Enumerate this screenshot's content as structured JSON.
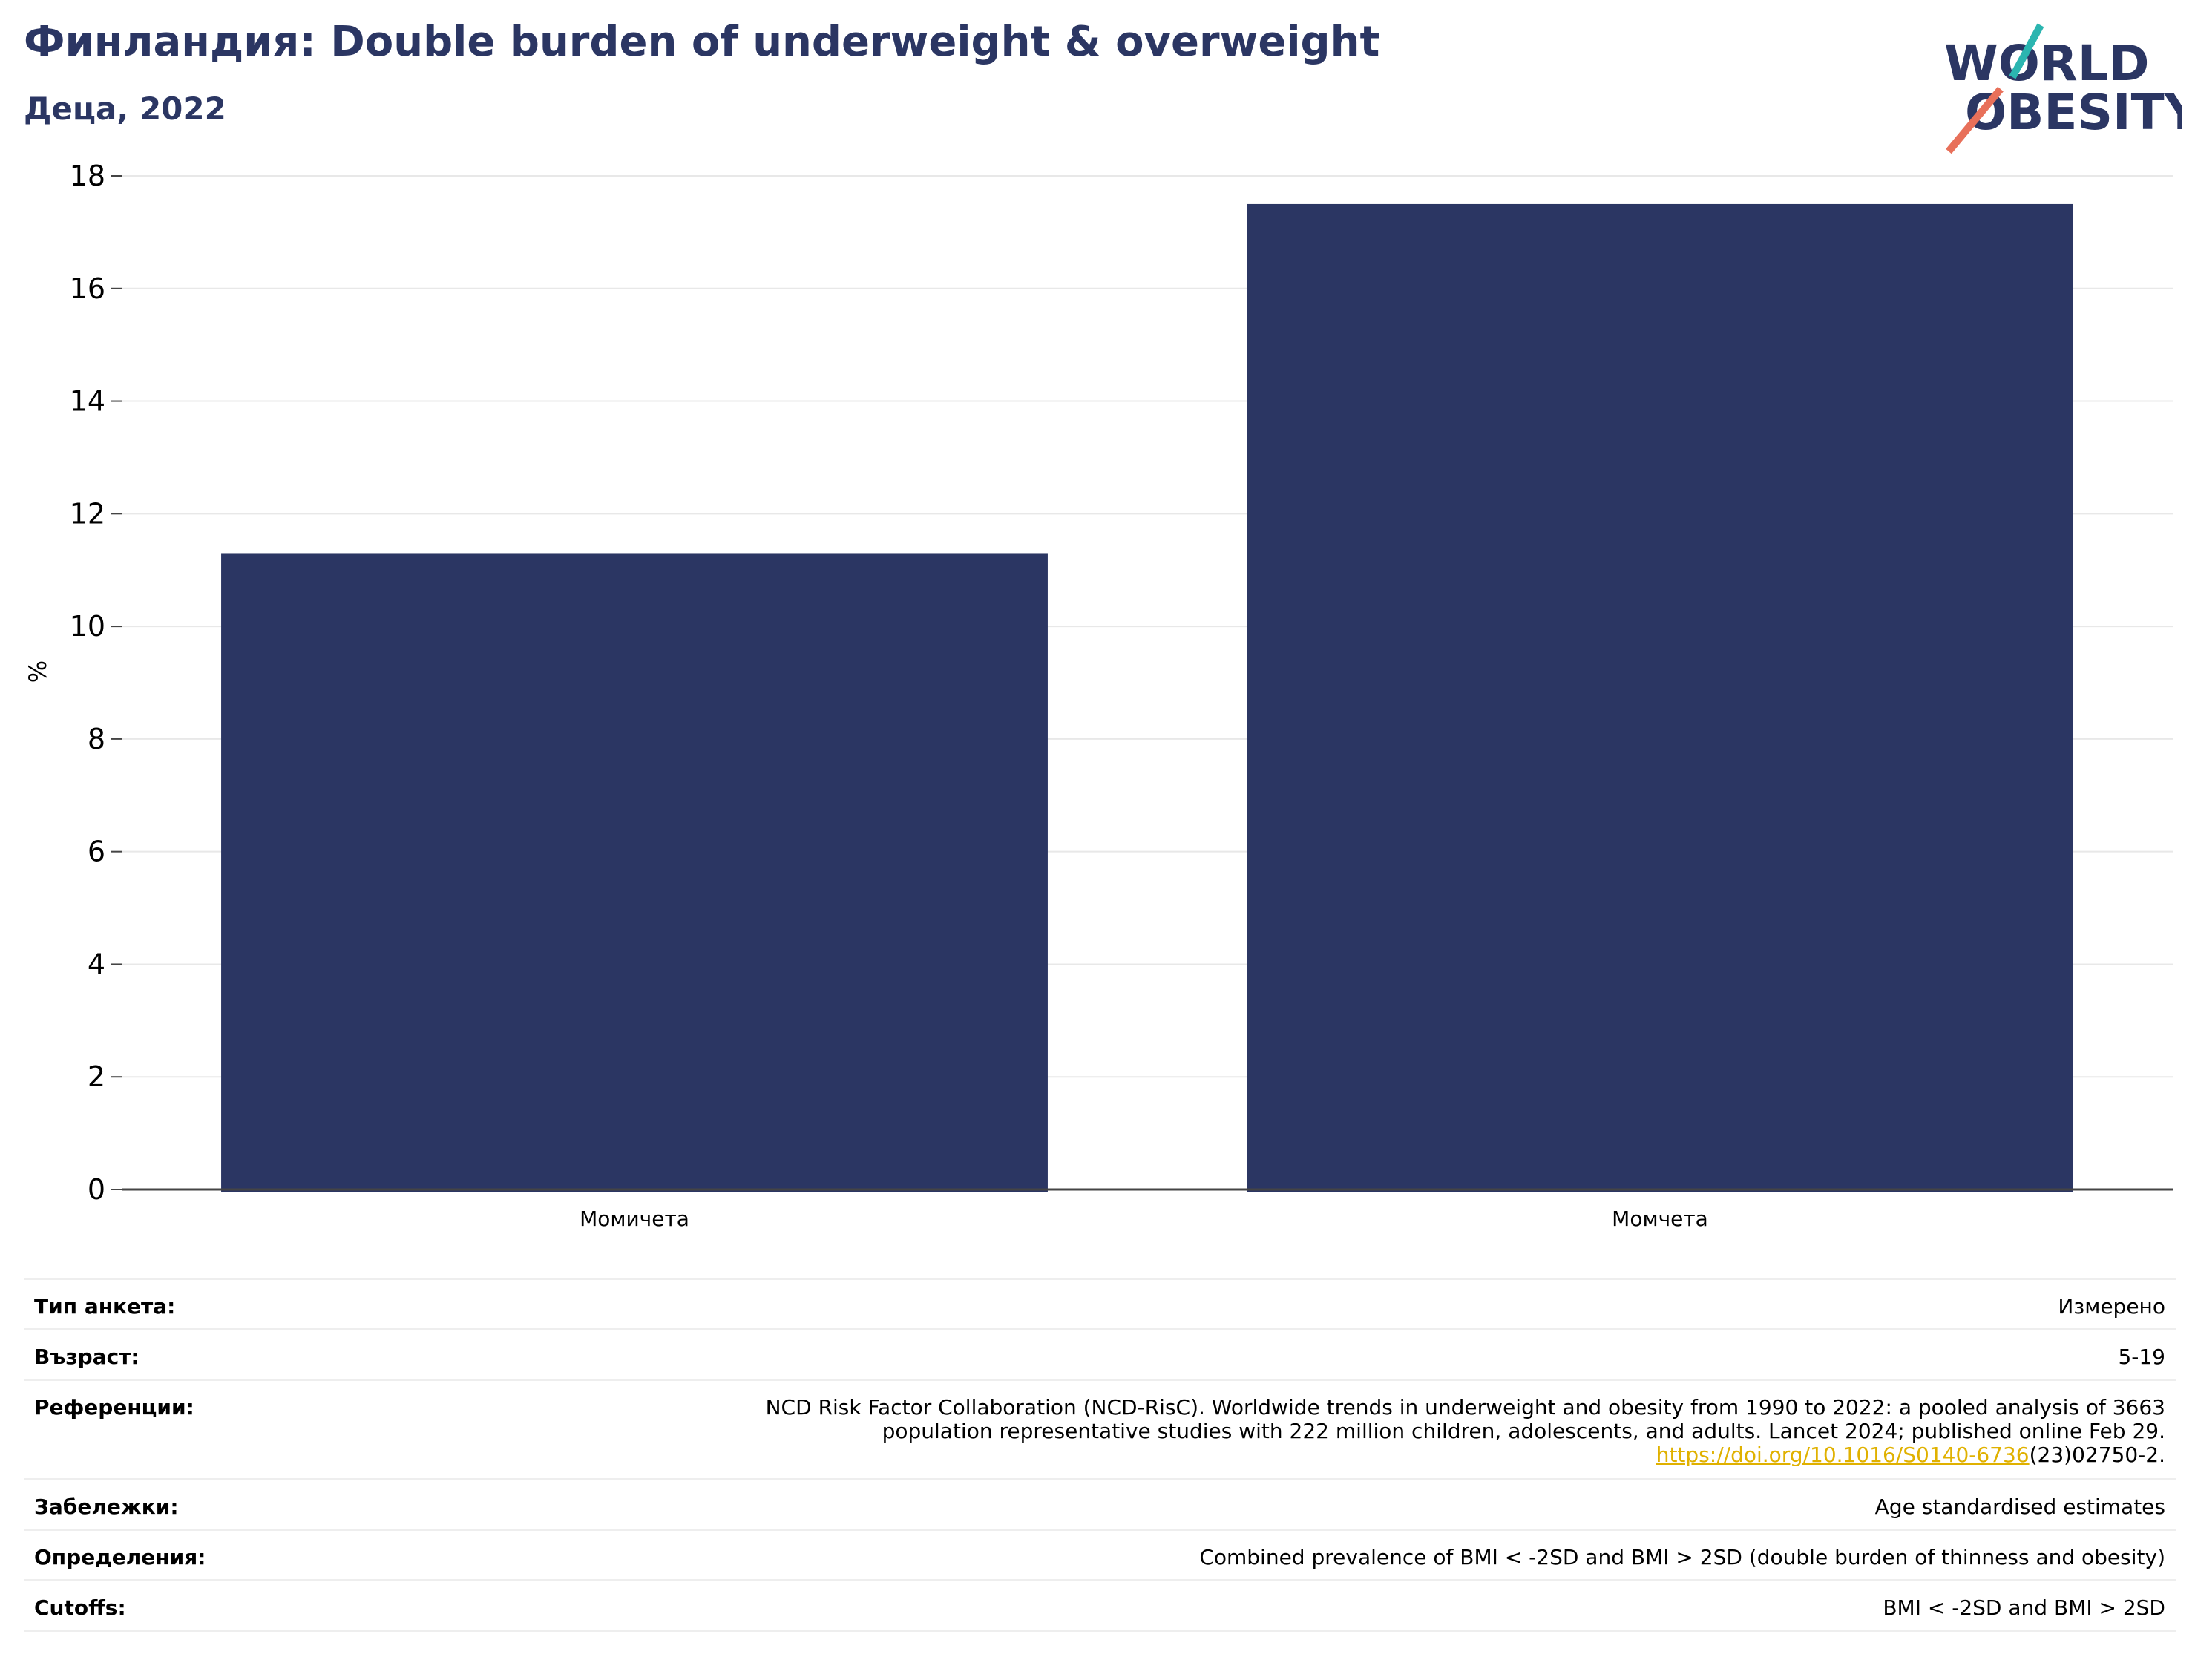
{
  "header": {
    "title": "Финландия: Double burden of underweight & overweight",
    "subtitle": "Деца, 2022"
  },
  "logo": {
    "line1": "WORLD",
    "line2": "OBESITY",
    "brand_color": "#2b3663",
    "slash_teal": "#2bb5b0",
    "slash_coral": "#e8705a"
  },
  "chart_data": {
    "type": "bar",
    "categories": [
      "Момичета",
      "Момчета"
    ],
    "values": [
      11.3,
      17.5
    ],
    "ylabel": "%",
    "xlabel": "",
    "ylim": [
      0,
      18
    ],
    "yticks": [
      0,
      2,
      4,
      6,
      8,
      10,
      12,
      14,
      16,
      18
    ],
    "grid": true,
    "bar_color": "#2b3663"
  },
  "meta": {
    "survey_type": {
      "label": "Тип анкета:",
      "value": "Измерено"
    },
    "age": {
      "label": "Възраст:",
      "value": "5-19"
    },
    "references": {
      "label": "Референции:",
      "line1": "NCD Risk Factor Collaboration (NCD-RisC). Worldwide trends in underweight and obesity from 1990 to 2022: a pooled analysis of 3663",
      "line2": "population representative studies with 222 million children, adolescents, and adults. Lancet 2024; published online Feb 29.",
      "link": "https://doi.org/10.1016/S0140-6736",
      "link_suffix": "(23)02750-2."
    },
    "notes": {
      "label": "Забележки:",
      "value": "Age standardised estimates"
    },
    "definitions": {
      "label": "Определения:",
      "value": "Combined prevalence of BMI < -2SD and BMI > 2SD (double burden of thinness and obesity)"
    },
    "cutoffs": {
      "label": "Cutoffs:",
      "value": "BMI < -2SD and BMI > 2SD"
    }
  }
}
